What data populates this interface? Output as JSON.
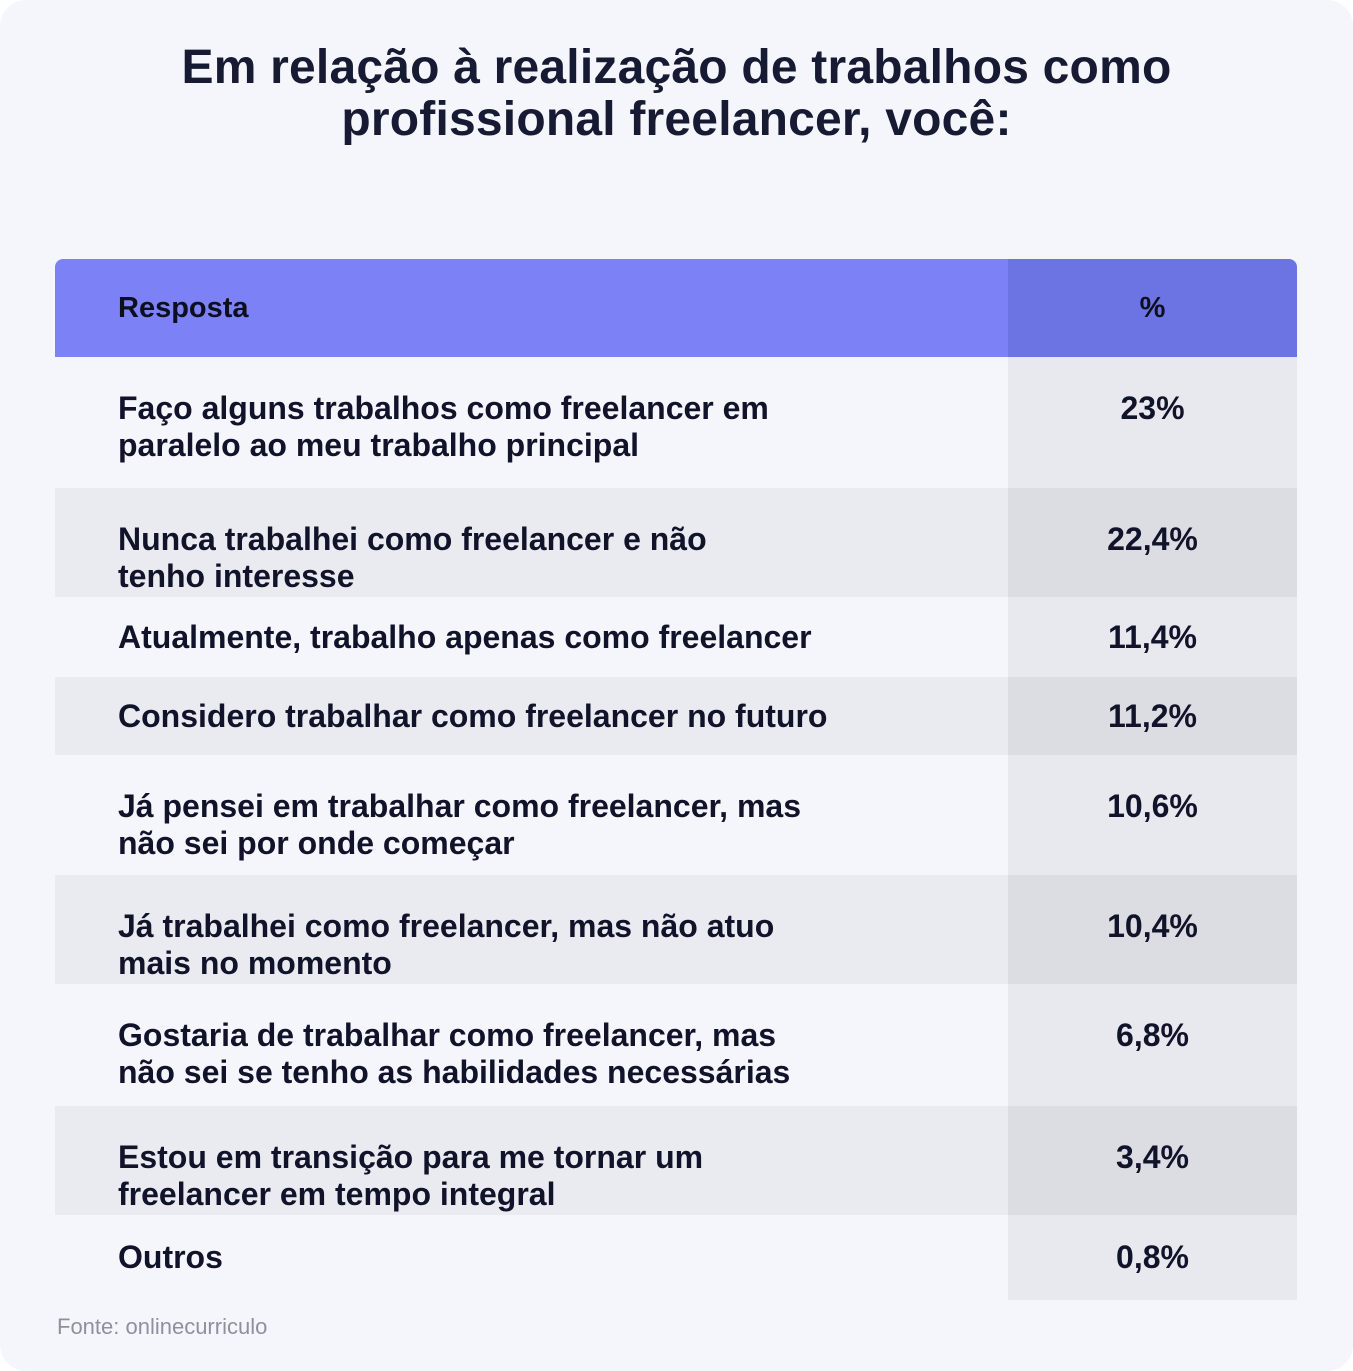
{
  "title": "Em relação à realização de trabalhos como profissional freelancer, você:",
  "source": "Fonte: onlinecurriculo",
  "colors": {
    "header_left": "#7c82f6",
    "header_right": "#6c74e4",
    "row_light": "#f5f6fb",
    "row_alt": "#e9ebf0",
    "text_dark": "#11132a"
  },
  "chart_data": {
    "type": "table",
    "title": "Em relação à realização de trabalhos como profissional freelancer, você:",
    "columns": [
      "Resposta",
      "%"
    ],
    "rows": [
      {
        "label": "Faço alguns trabalhos como freelancer em\nparalelo ao meu trabalho principal",
        "value": "23%"
      },
      {
        "label": "Nunca trabalhei como freelancer e não\ntenho interesse",
        "value": "22,4%"
      },
      {
        "label": "Atualmente, trabalho apenas como freelancer",
        "value": "11,4%"
      },
      {
        "label": "Considero trabalhar como freelancer no futuro",
        "value": "11,2%"
      },
      {
        "label": "Já pensei em trabalhar como freelancer, mas\nnão sei por onde começar",
        "value": "10,6%"
      },
      {
        "label": "Já trabalhei como freelancer, mas não atuo\nmais no momento",
        "value": "10,4%"
      },
      {
        "label": "Gostaria de trabalhar como freelancer, mas\nnão sei se tenho as habilidades necessárias",
        "value": "6,8%"
      },
      {
        "label": "Estou em transição para me tornar um\nfreelancer em tempo integral",
        "value": "3,4%"
      },
      {
        "label": "Outros",
        "value": "0,8%"
      }
    ]
  }
}
